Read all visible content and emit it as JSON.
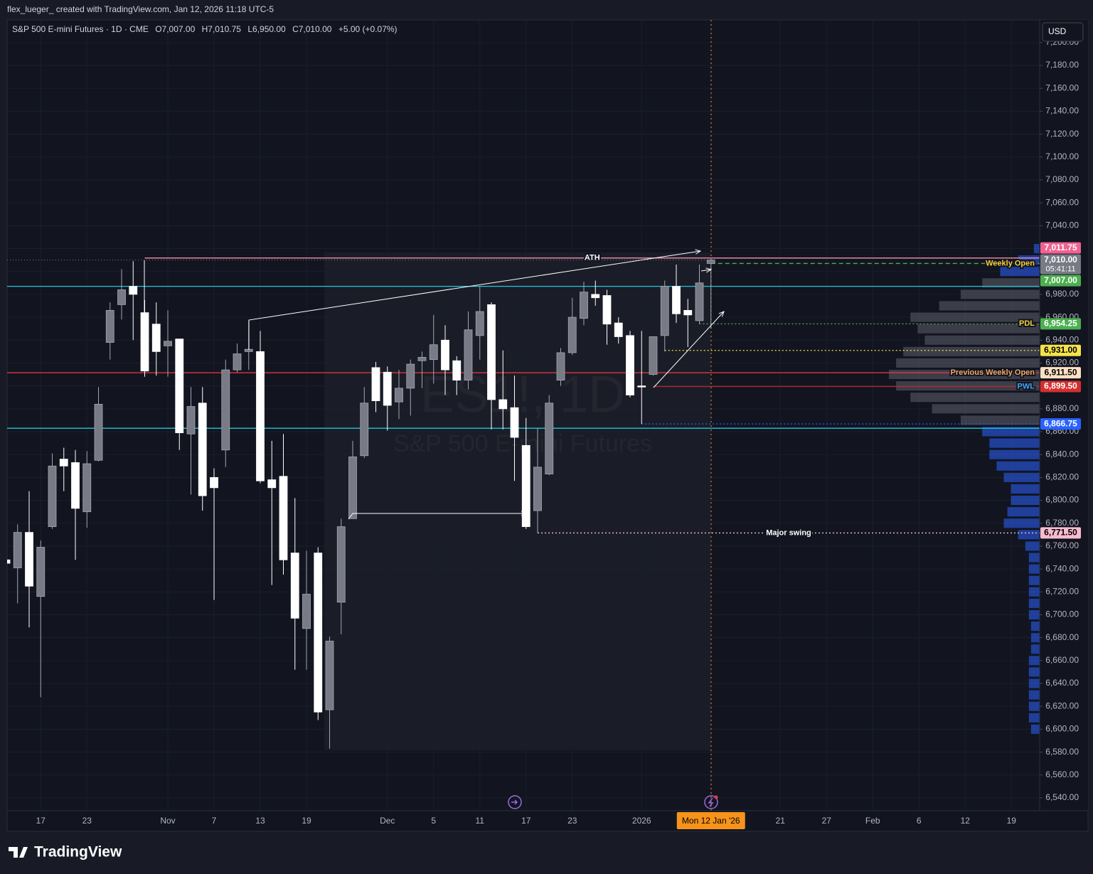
{
  "header": "flex_lueger_ created with TradingView.com, Jan 12, 2026 11:18 UTC-5",
  "logo": "TradingView",
  "currency": "USD",
  "chart_data": {
    "type": "candlestick",
    "title": "S&P 500 E-mini Futures · 1D · CME",
    "ohlc_names": [
      "O",
      "H",
      "L",
      "C"
    ],
    "ohlc_values": [
      "7,007.00",
      "7,010.75",
      "6,950.00",
      "7,010.00"
    ],
    "change": "+5.00 (+0.07%)",
    "watermark": [
      "ES1!, 1D",
      "S&P 500 E-mini Futures"
    ],
    "categories": [
      null,
      null,
      null,
      "17",
      null,
      null,
      null,
      "23",
      null,
      null,
      null,
      null,
      null,
      null,
      "Nov",
      null,
      null,
      null,
      "7",
      null,
      null,
      null,
      "13",
      null,
      null,
      null,
      "19",
      null,
      null,
      null,
      null,
      null,
      null,
      "Dec",
      null,
      null,
      null,
      "5",
      null,
      null,
      null,
      "11",
      null,
      null,
      null,
      "17",
      null,
      null,
      null,
      "23",
      null,
      null,
      null,
      null,
      null,
      "2026",
      null,
      null,
      null,
      null,
      null,
      "Mon 12 Jan '26",
      null,
      null,
      null,
      null,
      null,
      "21",
      null,
      null,
      null,
      "27",
      null,
      null,
      null,
      "Feb",
      null,
      null,
      null,
      "6",
      null,
      null,
      null,
      "12",
      null,
      null,
      null,
      "19",
      null
    ],
    "open": [
      6748,
      6741,
      6772,
      6716,
      6777,
      6836,
      6833,
      6790,
      6835,
      6938,
      6971,
      6987,
      6964,
      6954,
      6935,
      6941,
      6858,
      6885,
      6820,
      6844,
      6914,
      6930,
      6930,
      6818,
      6821,
      6754,
      6688,
      6754,
      6617,
      6711,
      6784,
      6839,
      6916,
      6912,
      6886,
      6898,
      6922,
      6923,
      6940,
      6922,
      6905,
      6944,
      6971,
      6888,
      6881,
      6848,
      6791,
      6823,
      6905,
      6929,
      6959,
      6980,
      6979,
      6955,
      6944,
      6900,
      6910,
      6944,
      6987,
      6966,
      6957,
      7007,
      null,
      null,
      null,
      null,
      null,
      null,
      null,
      null,
      null,
      null,
      null,
      null,
      null,
      null,
      null,
      null,
      null,
      null,
      null,
      null,
      null,
      null,
      null,
      null,
      null,
      null,
      null
    ],
    "high": [
      6750,
      6779,
      6808,
      6765,
      6841,
      6846,
      6844,
      6843,
      6899,
      6973,
      7002,
      7009,
      6975,
      6973,
      6966,
      6941,
      6899,
      6899,
      6828,
      6923,
      6937,
      6957,
      6948,
      6852,
      6858,
      6802,
      6756,
      6759,
      6681,
      6784,
      6852,
      6899,
      6921,
      6917,
      6914,
      6923,
      6930,
      6962,
      6953,
      6926,
      6965,
      6987,
      6973,
      6931,
      6909,
      6872,
      6863,
      6892,
      6933,
      6977,
      6991,
      6992,
      6984,
      6960,
      6948,
      6948,
      6943,
      6992,
      7006,
      6976,
      7006,
      7010.75,
      null,
      null,
      null,
      null,
      null,
      null,
      null,
      null,
      null,
      null,
      null,
      null,
      null,
      null,
      null,
      null,
      null,
      null,
      null,
      null,
      null,
      null,
      null,
      null,
      null,
      null,
      null
    ],
    "low": [
      6744,
      6710,
      6689,
      6628,
      6775,
      6808,
      6748,
      6776,
      6834,
      6923,
      6958,
      6940,
      6908,
      6909,
      6908,
      6844,
      6805,
      6791,
      6713,
      6829,
      6912,
      6914,
      6815,
      6726,
      6735,
      6652,
      6652,
      6608,
      6583,
      6683,
      6784,
      6837,
      6877,
      6861,
      6871,
      6874,
      6898,
      6902,
      6892,
      6892,
      6897,
      6923,
      6862,
      6862,
      6817,
      6775,
      6771.5,
      6822,
      6900,
      6927,
      6953,
      6970,
      6936,
      6937,
      6890,
      6866.75,
      6909,
      6930,
      6955,
      6934,
      6954.25,
      6950,
      null,
      null,
      null,
      null,
      null,
      null,
      null,
      null,
      null,
      null,
      null,
      null,
      null,
      null,
      null,
      null,
      null,
      null,
      null,
      null,
      null,
      null,
      null,
      null,
      null,
      null,
      null
    ],
    "close": [
      6745,
      6772,
      6725,
      6759,
      6830,
      6830,
      6793,
      6832,
      6884,
      6966,
      6984,
      6980,
      6913,
      6930,
      6939,
      6859,
      6882,
      6804,
      6811,
      6914,
      6928,
      6932,
      6817,
      6811,
      6748,
      6697,
      6718,
      6615,
      6677,
      6777,
      6838,
      6885,
      6887,
      6883,
      6898,
      6919,
      6925,
      6936,
      6914,
      6905,
      6949,
      6965,
      6888,
      6880,
      6855,
      6777,
      6829,
      6885,
      6929,
      6960,
      6982,
      6977,
      6954,
      6943,
      6892,
      6899,
      6943,
      6987,
      6963,
      6962,
      6990,
      7010,
      null,
      null,
      null,
      null,
      null,
      null,
      null,
      null,
      null,
      null,
      null,
      null,
      null,
      null,
      null,
      null,
      null,
      null,
      null,
      null,
      null,
      null,
      null,
      null,
      null,
      null,
      null
    ],
    "up_color": "#787b86",
    "up_wick_color": "#a3a6af",
    "down_color": "#ffffff",
    "ylim": [
      6528.8,
      7219.8
    ],
    "yticks": [
      {
        "value": 6540,
        "label": "6,540.00"
      },
      {
        "value": 6560,
        "label": "6,560.00"
      },
      {
        "value": 6580,
        "label": "6,580.00"
      },
      {
        "value": 6600,
        "label": "6,600.00"
      },
      {
        "value": 6620,
        "label": "6,620.00"
      },
      {
        "value": 6640,
        "label": "6,640.00"
      },
      {
        "value": 6660,
        "label": "6,660.00"
      },
      {
        "value": 6680,
        "label": "6,680.00"
      },
      {
        "value": 6700,
        "label": "6,700.00"
      },
      {
        "value": 6720,
        "label": "6,720.00"
      },
      {
        "value": 6740,
        "label": "6,740.00"
      },
      {
        "value": 6760,
        "label": "6,760.00"
      },
      {
        "value": 6780,
        "label": "6,780.00"
      },
      {
        "value": 6800,
        "label": "6,800.00"
      },
      {
        "value": 6820,
        "label": "6,820.00"
      },
      {
        "value": 6840,
        "label": "6,840.00"
      },
      {
        "value": 6860,
        "label": "6,860.00"
      },
      {
        "value": 6880,
        "label": "6,880.00"
      },
      {
        "value": 6900,
        "label": "6,900.00"
      },
      {
        "value": 6920,
        "label": "6,920.00"
      },
      {
        "value": 6940,
        "label": "6,940.00"
      },
      {
        "value": 6960,
        "label": "6,960.00"
      },
      {
        "value": 6980,
        "label": "6,980.00"
      },
      {
        "value": 7000,
        "label": "7,000.00"
      },
      {
        "value": 7020,
        "label": "7,020.00"
      },
      {
        "value": 7040,
        "label": "7,040.00"
      },
      {
        "value": 7060,
        "label": "7,060.00"
      },
      {
        "value": 7080,
        "label": "7,080.00"
      },
      {
        "value": 7100,
        "label": "7,100.00"
      },
      {
        "value": 7120,
        "label": "7,120.00"
      },
      {
        "value": 7140,
        "label": "7,140.00"
      },
      {
        "value": 7160,
        "label": "7,160.00"
      },
      {
        "value": 7180,
        "label": "7,180.00"
      },
      {
        "value": 7200,
        "label": "7,200.00"
      }
    ],
    "grid": true,
    "grid_color": "#1b1f2b",
    "last_price": {
      "label": "7,010.00",
      "countdown": "05:41:11",
      "color": "#787b86"
    },
    "levels": [
      {
        "value": 7011.75,
        "tag": "7,011.75",
        "label": "ATH",
        "label_position": "center",
        "label_color": "#ffffff",
        "color": "#f48fb1",
        "tag_color": "#f06292",
        "tag_text_color": "#ffffff",
        "style": "solid",
        "from": 12
      },
      {
        "value": 7007,
        "tag": "7,007.00",
        "label": "Weekly Open",
        "label_position": "right",
        "label_color": "#f5d23a",
        "color": "#4caf50",
        "tag_color": "#4caf50",
        "tag_text_color": "#ffffff",
        "style": "dashed",
        "from": 61
      },
      {
        "value": 6987,
        "color": "#22c5dc",
        "style": "solid",
        "from": 0
      },
      {
        "value": 6954.25,
        "tag": "6,954.25",
        "label": "PDL",
        "label_position": "right",
        "label_color": "#f5d23a",
        "color": "#4caf50",
        "tag_color": "#4caf50",
        "tag_text_color": "#ffffff",
        "style": "dotted",
        "from": 60
      },
      {
        "value": 6931,
        "tag": "6,931.00",
        "color": "#f5e34a",
        "tag_color": "#f5e34a",
        "tag_text_color": "#000000",
        "style": "dotted",
        "from": 57
      },
      {
        "value": 6911.5,
        "tag": "6,911.50",
        "label": "Previous Weekly Open",
        "label_position": "right",
        "label_color": "#f0a868",
        "color": "#f23645",
        "tag_color": "#fbe0c3",
        "tag_text_color": "#000000",
        "style": "solid",
        "from": 0
      },
      {
        "value": 6899.5,
        "tag": "6,899.50",
        "label": "PWL",
        "label_position": "right",
        "label_color": "#42a5f5",
        "color": "#b22833",
        "tag_color": "#d32f2f",
        "tag_text_color": "#ffffff",
        "style": "solid",
        "from": 56
      },
      {
        "value": 6866.75,
        "tag": "6,866.75",
        "color": "#2962ff",
        "tag_color": "#2962ff",
        "tag_text_color": "#ffffff",
        "style": "dotted",
        "from": 55
      },
      {
        "value": 6863,
        "color": "#22c5dc",
        "style": "solid",
        "from": 0
      },
      {
        "value": 6771.5,
        "tag": "6,771.50",
        "label": "Major swing",
        "label_position": "center",
        "label_color": "#ffffff",
        "color": "#f8bbd0",
        "tag_color": "#f8bbd0",
        "tag_text_color": "#000000",
        "style": "dotted",
        "from": 46
      }
    ],
    "volume_profile": {
      "prices": [
        7020,
        7010,
        7000,
        6990,
        6980,
        6970,
        6960,
        6950,
        6940,
        6930,
        6920,
        6910,
        6900,
        6890,
        6880,
        6870,
        6860,
        6850,
        6840,
        6830,
        6820,
        6810,
        6800,
        6790,
        6780,
        6770,
        6760,
        6750,
        6740,
        6730,
        6720,
        6710,
        6700,
        6690,
        6680,
        6670,
        6660,
        6650,
        6640,
        6630,
        6620,
        6610,
        6600
      ],
      "volumes": [
        8,
        30,
        55,
        80,
        110,
        140,
        180,
        170,
        160,
        190,
        200,
        210,
        200,
        180,
        150,
        110,
        80,
        70,
        70,
        60,
        50,
        40,
        40,
        45,
        50,
        30,
        20,
        15,
        15,
        15,
        15,
        15,
        15,
        12,
        12,
        12,
        15,
        15,
        15,
        15,
        15,
        15,
        12
      ],
      "colors": [
        "#2962ff",
        "#2962ff",
        "#2962ff",
        "#5d606b",
        "#5d606b",
        "#5d606b",
        "#5d606b",
        "#5d606b",
        "#5d606b",
        "#5d606b",
        "#5d606b",
        "#5d606b",
        "#5d606b",
        "#5d606b",
        "#5d606b",
        "#5d606b",
        "#2962ff",
        "#2962ff",
        "#2962ff",
        "#2962ff",
        "#2962ff",
        "#2962ff",
        "#2962ff",
        "#2962ff",
        "#2962ff",
        "#2962ff",
        "#2962ff",
        "#2962ff",
        "#2962ff",
        "#2962ff",
        "#2962ff",
        "#2962ff",
        "#2962ff",
        "#2962ff",
        "#2962ff",
        "#2962ff",
        "#2962ff",
        "#2962ff",
        "#2962ff",
        "#2962ff",
        "#2962ff",
        "#2962ff",
        "#2962ff"
      ]
    }
  }
}
